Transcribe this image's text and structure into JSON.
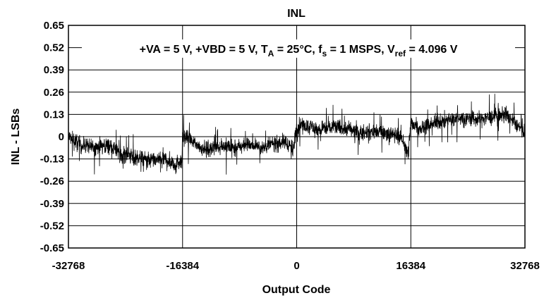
{
  "chart_data": {
    "type": "line",
    "title": "INL",
    "xlabel": "Output Code",
    "ylabel": "INL - LSBs",
    "xlim": [
      -32768,
      32768
    ],
    "ylim": [
      -0.65,
      0.65
    ],
    "xticks": [
      -32768,
      -16384,
      0,
      16384,
      32768
    ],
    "xtick_labels": [
      "-32768",
      "-16384",
      "0",
      "16384",
      "32768"
    ],
    "yticks": [
      0.65,
      0.52,
      0.39,
      0.26,
      0.13,
      0,
      -0.13,
      -0.26,
      -0.39,
      -0.52,
      -0.65
    ],
    "ytick_labels": [
      "0.65",
      "0.52",
      "0.39",
      "0.26",
      "0.13",
      "0",
      "-0.13",
      "-0.26",
      "-0.39",
      "-0.52",
      "-0.65"
    ],
    "grid": true,
    "annotation": {
      "parts": [
        "+VA = 5 V, +VBD = 5 V, T",
        "A",
        " = 25°C, f",
        "s",
        " = 1 MSPS, V",
        "ref",
        " = 4.096 V"
      ]
    },
    "series": [
      {
        "color": "#000000",
        "trend_x": [
          -32768,
          -31000,
          -29000,
          -27000,
          -25000,
          -23000,
          -21000,
          -19000,
          -17500,
          -16500,
          -16384,
          -15000,
          -13000,
          -11000,
          -9000,
          -7000,
          -5000,
          -3000,
          -1500,
          -500,
          0,
          1500,
          3000,
          5000,
          7000,
          9000,
          11000,
          13000,
          15000,
          16000,
          16384,
          18000,
          20000,
          22000,
          24000,
          26000,
          28000,
          30000,
          32768
        ],
        "trend_y": [
          0.0,
          -0.05,
          -0.06,
          -0.05,
          -0.1,
          -0.12,
          -0.14,
          -0.13,
          -0.16,
          -0.14,
          0.0,
          -0.03,
          -0.08,
          -0.05,
          -0.07,
          -0.04,
          -0.06,
          -0.04,
          -0.03,
          -0.08,
          0.06,
          0.07,
          0.04,
          0.06,
          0.05,
          0.02,
          0.03,
          0.02,
          0.0,
          -0.1,
          0.08,
          0.05,
          0.08,
          0.1,
          0.11,
          0.1,
          0.12,
          0.13,
          0.02
        ],
        "spread": 0.07
      }
    ]
  }
}
